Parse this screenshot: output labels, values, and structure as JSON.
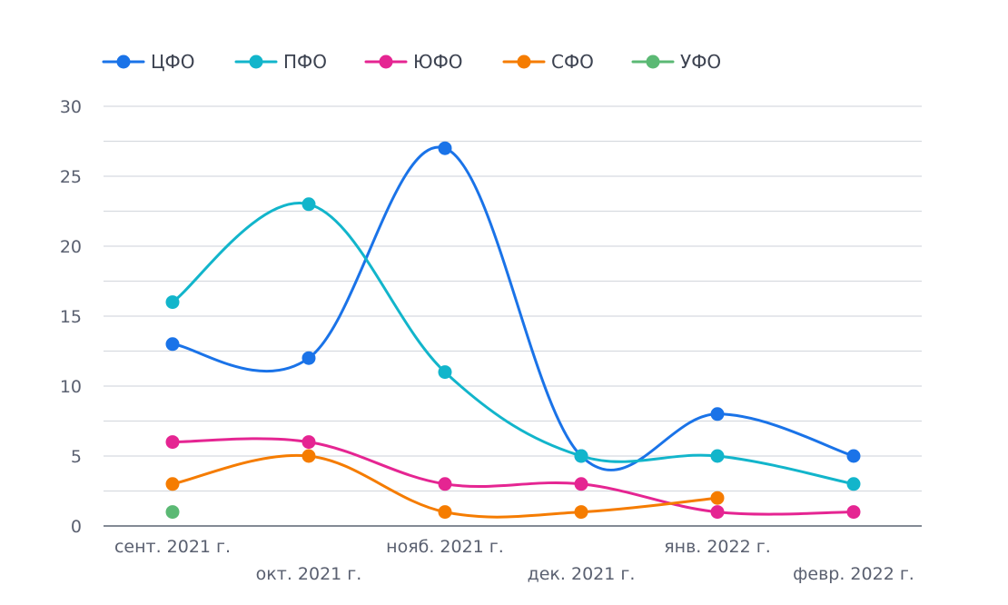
{
  "chart_data": {
    "type": "line",
    "title": "",
    "xlabel": "",
    "ylabel": "",
    "ylim": [
      0,
      30
    ],
    "y_ticks": [
      0,
      5,
      10,
      15,
      20,
      25,
      30
    ],
    "grid": true,
    "legend_position": "top-left",
    "categories": [
      "сент. 2021 г.",
      "окт. 2021 г.",
      "нояб. 2021 г.",
      "дек. 2021 г.",
      "янв. 2022 г.",
      "февр. 2022 г."
    ],
    "series": [
      {
        "name": "ЦФО",
        "color": "#1a73e8",
        "values": [
          13,
          12,
          27,
          5,
          8,
          5
        ]
      },
      {
        "name": "ПФО",
        "color": "#12b5cb",
        "values": [
          16,
          23,
          11,
          5,
          5,
          3
        ]
      },
      {
        "name": "ЮФО",
        "color": "#e52592",
        "values": [
          6,
          6,
          3,
          3,
          1,
          1
        ]
      },
      {
        "name": "СФО",
        "color": "#f57c00",
        "values": [
          3,
          5,
          1,
          1,
          2,
          null
        ]
      },
      {
        "name": "УФО",
        "color": "#5bb974",
        "values": [
          1,
          null,
          null,
          null,
          null,
          null
        ]
      }
    ]
  }
}
